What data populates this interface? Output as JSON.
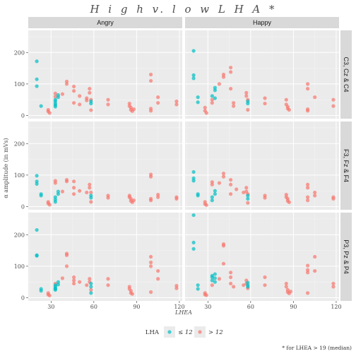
{
  "chart_data": {
    "type": "scatter",
    "title": "H i g h  v.  l o w  L H A *",
    "xlabel": "LHEA",
    "ylabel": "α amplitude (in mVs)",
    "caption": "* for LHEA > 19 (median)",
    "xlim": [
      14,
      122
    ],
    "ylim": [
      -10,
      270
    ],
    "xticks": [
      30,
      60,
      90,
      120
    ],
    "yticks": [
      0,
      100,
      200
    ],
    "grid": true,
    "legend": {
      "title": "LHA",
      "placement": "bottom",
      "entries": [
        {
          "label": "≤ 12",
          "color": "#00BFC4"
        },
        {
          "label": "> 12",
          "color": "#F8766D"
        }
      ]
    },
    "columns": [
      "Angry",
      "Happy"
    ],
    "rows": [
      "C3, Cz & C4",
      "F3, Fz & F4",
      "P3, Pz & P4"
    ],
    "series_colors": {
      "low": "#00BFC4",
      "high": "#F8766D"
    },
    "panels": [
      {
        "column": "Angry",
        "row": "C3, Cz & C4",
        "low": [
          [
            20,
            172
          ],
          [
            20,
            115
          ],
          [
            20,
            93
          ],
          [
            23,
            30
          ],
          [
            33,
            50
          ],
          [
            33,
            45
          ],
          [
            33,
            38
          ],
          [
            33,
            33
          ],
          [
            33,
            28
          ],
          [
            35,
            65
          ],
          [
            35,
            58
          ],
          [
            58,
            45
          ],
          [
            58,
            38
          ]
        ],
        "high": [
          [
            28,
            18
          ],
          [
            28,
            13
          ],
          [
            29,
            8
          ],
          [
            33,
            70
          ],
          [
            33,
            60
          ],
          [
            38,
            68
          ],
          [
            41,
            108
          ],
          [
            41,
            100
          ],
          [
            46,
            92
          ],
          [
            46,
            78
          ],
          [
            46,
            40
          ],
          [
            50,
            62
          ],
          [
            50,
            35
          ],
          [
            55,
            55
          ],
          [
            55,
            48
          ],
          [
            57,
            85
          ],
          [
            57,
            72
          ],
          [
            58,
            50
          ],
          [
            58,
            17
          ],
          [
            70,
            50
          ],
          [
            70,
            35
          ],
          [
            85,
            38
          ],
          [
            85,
            30
          ],
          [
            86,
            25
          ],
          [
            86,
            18
          ],
          [
            87,
            14
          ],
          [
            88,
            20
          ],
          [
            100,
            130
          ],
          [
            100,
            110
          ],
          [
            100,
            22
          ],
          [
            100,
            15
          ],
          [
            105,
            58
          ],
          [
            105,
            40
          ],
          [
            118,
            45
          ],
          [
            118,
            35
          ]
        ]
      },
      {
        "column": "Happy",
        "row": "C3, Cz & C4",
        "low": [
          [
            20,
            205
          ],
          [
            20,
            128
          ],
          [
            20,
            118
          ],
          [
            23,
            58
          ],
          [
            23,
            42
          ],
          [
            33,
            62
          ],
          [
            35,
            80
          ],
          [
            35,
            88
          ],
          [
            35,
            55
          ],
          [
            58,
            45
          ],
          [
            58,
            38
          ]
        ],
        "high": [
          [
            28,
            25
          ],
          [
            28,
            15
          ],
          [
            29,
            8
          ],
          [
            33,
            50
          ],
          [
            33,
            40
          ],
          [
            38,
            100
          ],
          [
            41,
            130
          ],
          [
            41,
            122
          ],
          [
            46,
            152
          ],
          [
            46,
            138
          ],
          [
            46,
            85
          ],
          [
            48,
            40
          ],
          [
            48,
            30
          ],
          [
            57,
            72
          ],
          [
            57,
            62
          ],
          [
            58,
            50
          ],
          [
            58,
            18
          ],
          [
            70,
            55
          ],
          [
            70,
            38
          ],
          [
            85,
            50
          ],
          [
            85,
            35
          ],
          [
            86,
            28
          ],
          [
            86,
            22
          ],
          [
            87,
            18
          ],
          [
            100,
            100
          ],
          [
            100,
            85
          ],
          [
            100,
            20
          ],
          [
            100,
            15
          ],
          [
            105,
            58
          ],
          [
            118,
            50
          ],
          [
            118,
            30
          ]
        ]
      },
      {
        "column": "Angry",
        "row": "F3, Fz & F4",
        "low": [
          [
            20,
            98
          ],
          [
            20,
            80
          ],
          [
            20,
            72
          ],
          [
            23,
            40
          ],
          [
            23,
            35
          ],
          [
            33,
            30
          ],
          [
            33,
            22
          ],
          [
            33,
            15
          ],
          [
            35,
            48
          ],
          [
            35,
            40
          ],
          [
            58,
            35
          ],
          [
            58,
            28
          ]
        ],
        "high": [
          [
            28,
            15
          ],
          [
            28,
            10
          ],
          [
            29,
            6
          ],
          [
            33,
            82
          ],
          [
            33,
            75
          ],
          [
            38,
            48
          ],
          [
            41,
            85
          ],
          [
            41,
            80
          ],
          [
            46,
            80
          ],
          [
            46,
            60
          ],
          [
            46,
            40
          ],
          [
            50,
            50
          ],
          [
            55,
            45
          ],
          [
            57,
            70
          ],
          [
            57,
            60
          ],
          [
            58,
            45
          ],
          [
            58,
            15
          ],
          [
            70,
            35
          ],
          [
            70,
            28
          ],
          [
            85,
            35
          ],
          [
            85,
            30
          ],
          [
            86,
            25
          ],
          [
            86,
            18
          ],
          [
            87,
            14
          ],
          [
            88,
            20
          ],
          [
            100,
            102
          ],
          [
            100,
            95
          ],
          [
            100,
            25
          ],
          [
            100,
            20
          ],
          [
            105,
            38
          ],
          [
            105,
            30
          ],
          [
            118,
            30
          ],
          [
            118,
            25
          ]
        ]
      },
      {
        "column": "Happy",
        "row": "F3, Fz & F4",
        "low": [
          [
            20,
            110
          ],
          [
            20,
            90
          ],
          [
            20,
            82
          ],
          [
            23,
            40
          ],
          [
            23,
            35
          ],
          [
            33,
            30
          ],
          [
            33,
            20
          ],
          [
            35,
            50
          ],
          [
            35,
            40
          ],
          [
            58,
            35
          ],
          [
            58,
            25
          ]
        ],
        "high": [
          [
            28,
            15
          ],
          [
            28,
            8
          ],
          [
            29,
            5
          ],
          [
            33,
            78
          ],
          [
            33,
            70
          ],
          [
            38,
            75
          ],
          [
            41,
            105
          ],
          [
            41,
            95
          ],
          [
            46,
            85
          ],
          [
            46,
            70
          ],
          [
            46,
            40
          ],
          [
            50,
            55
          ],
          [
            55,
            45
          ],
          [
            57,
            60
          ],
          [
            57,
            48
          ],
          [
            58,
            40
          ],
          [
            58,
            12
          ],
          [
            70,
            35
          ],
          [
            70,
            28
          ],
          [
            85,
            38
          ],
          [
            85,
            30
          ],
          [
            86,
            25
          ],
          [
            86,
            18
          ],
          [
            87,
            14
          ],
          [
            100,
            70
          ],
          [
            100,
            60
          ],
          [
            100,
            30
          ],
          [
            100,
            20
          ],
          [
            105,
            45
          ],
          [
            105,
            35
          ],
          [
            118,
            30
          ],
          [
            118,
            25
          ]
        ]
      },
      {
        "column": "Angry",
        "row": "P3, Pz & P4",
        "low": [
          [
            20,
            215
          ],
          [
            20,
            135
          ],
          [
            20,
            133
          ],
          [
            23,
            28
          ],
          [
            23,
            22
          ],
          [
            33,
            40
          ],
          [
            33,
            35
          ],
          [
            33,
            28
          ],
          [
            33,
            25
          ],
          [
            33,
            30
          ],
          [
            35,
            50
          ],
          [
            35,
            42
          ],
          [
            58,
            45
          ],
          [
            58,
            35
          ],
          [
            58,
            15
          ]
        ],
        "high": [
          [
            28,
            15
          ],
          [
            28,
            10
          ],
          [
            29,
            7
          ],
          [
            33,
            45
          ],
          [
            38,
            62
          ],
          [
            41,
            140
          ],
          [
            41,
            135
          ],
          [
            41,
            100
          ],
          [
            46,
            65
          ],
          [
            46,
            55
          ],
          [
            46,
            45
          ],
          [
            50,
            50
          ],
          [
            55,
            40
          ],
          [
            57,
            60
          ],
          [
            57,
            50
          ],
          [
            58,
            25
          ],
          [
            70,
            60
          ],
          [
            70,
            40
          ],
          [
            85,
            35
          ],
          [
            85,
            28
          ],
          [
            86,
            22
          ],
          [
            86,
            15
          ],
          [
            87,
            12
          ],
          [
            100,
            130
          ],
          [
            100,
            112
          ],
          [
            100,
            100
          ],
          [
            100,
            18
          ],
          [
            105,
            85
          ],
          [
            105,
            60
          ],
          [
            118,
            38
          ],
          [
            118,
            30
          ]
        ]
      },
      {
        "column": "Happy",
        "row": "P3, Pz & P4",
        "low": [
          [
            20,
            262
          ],
          [
            20,
            175
          ],
          [
            20,
            155
          ],
          [
            23,
            40
          ],
          [
            23,
            28
          ],
          [
            33,
            70
          ],
          [
            33,
            65
          ],
          [
            33,
            55
          ],
          [
            35,
            75
          ],
          [
            35,
            62
          ],
          [
            35,
            50
          ],
          [
            58,
            48
          ],
          [
            58,
            40
          ],
          [
            58,
            35
          ]
        ],
        "high": [
          [
            28,
            15
          ],
          [
            28,
            10
          ],
          [
            29,
            8
          ],
          [
            33,
            40
          ],
          [
            38,
            60
          ],
          [
            41,
            170
          ],
          [
            41,
            165
          ],
          [
            41,
            108
          ],
          [
            46,
            80
          ],
          [
            46,
            65
          ],
          [
            46,
            45
          ],
          [
            48,
            35
          ],
          [
            55,
            40
          ],
          [
            57,
            55
          ],
          [
            57,
            45
          ],
          [
            58,
            30
          ],
          [
            70,
            65
          ],
          [
            70,
            40
          ],
          [
            85,
            45
          ],
          [
            85,
            35
          ],
          [
            86,
            25
          ],
          [
            86,
            18
          ],
          [
            87,
            14
          ],
          [
            88,
            20
          ],
          [
            100,
            102
          ],
          [
            100,
            88
          ],
          [
            100,
            80
          ],
          [
            100,
            15
          ],
          [
            105,
            130
          ],
          [
            105,
            85
          ],
          [
            118,
            45
          ],
          [
            118,
            35
          ]
        ]
      }
    ]
  }
}
